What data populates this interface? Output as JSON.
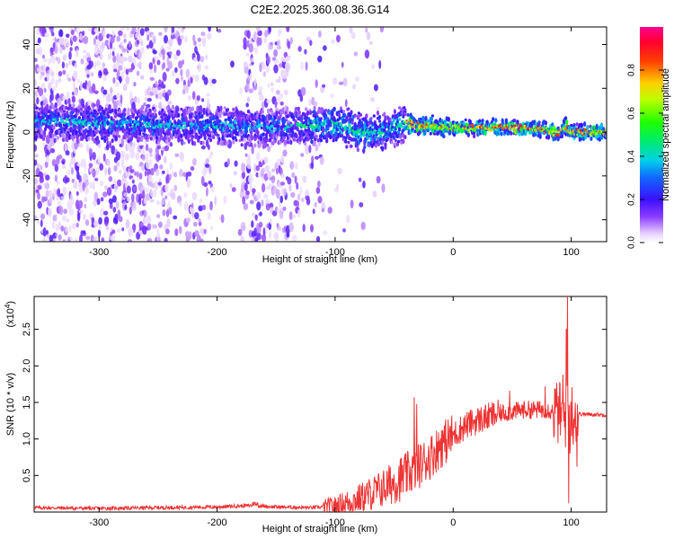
{
  "title": "C2E2.2025.360.08.36.G14",
  "chart_data": [
    {
      "type": "heatmap",
      "xlabel": "Height of straight line (km)",
      "ylabel": "Frequency (Hz)",
      "xlim": [
        -355,
        130
      ],
      "ylim": [
        -50,
        48
      ],
      "xticks": [
        -300,
        -200,
        -100,
        0,
        100
      ],
      "yticks": [
        -40,
        -20,
        0,
        20,
        40
      ],
      "colorbar": {
        "label": "Normalized spectral amplitude",
        "range": [
          0.0,
          1.0
        ],
        "ticks": [
          "0.0",
          "0.2",
          "0.4",
          "0.6",
          "0.8"
        ],
        "colormap": "rainbow"
      },
      "ridge": {
        "x": [
          -355,
          -300,
          -250,
          -200,
          -150,
          -120,
          -100,
          -80,
          -60,
          -50,
          -40,
          -30,
          0,
          50,
          80,
          90,
          95,
          100,
          130
        ],
        "y": [
          5,
          4,
          3,
          3,
          2,
          3,
          4,
          0,
          0,
          2,
          4,
          3,
          2,
          2,
          1,
          -1,
          3,
          0,
          0
        ]
      }
    },
    {
      "type": "line",
      "xlabel": "Height of straight line (km)",
      "ylabel": "SNR (10 * v/v)",
      "yscale_label": "(x10",
      "yscale_exp": "4",
      "xlim": [
        -355,
        130
      ],
      "ylim": [
        0,
        2.95
      ],
      "xticks": [
        -300,
        -200,
        -100,
        0,
        100
      ],
      "yticks": [
        "0.5",
        "1.0",
        "1.5",
        "2.0",
        "2.5"
      ],
      "ytick_values": [
        0.5,
        1.0,
        1.5,
        2.0,
        2.5
      ],
      "color": "#ee3333",
      "trend": {
        "x": [
          -355,
          -300,
          -250,
          -200,
          -170,
          -150,
          -120,
          -100,
          -80,
          -60,
          -40,
          -30,
          -20,
          -10,
          0,
          10,
          20,
          40,
          60,
          80,
          90,
          95,
          100,
          110,
          130
        ],
        "y": [
          0.06,
          0.05,
          0.06,
          0.07,
          0.09,
          0.07,
          0.06,
          0.08,
          0.18,
          0.32,
          0.5,
          0.62,
          0.75,
          0.92,
          1.05,
          1.18,
          1.25,
          1.35,
          1.4,
          1.4,
          1.35,
          1.3,
          1.35,
          1.34,
          1.33
        ]
      },
      "spikes": [
        {
          "x": -33,
          "y": 1.57
        },
        {
          "x": -31,
          "y": 1.48
        },
        {
          "x": -10,
          "y": 1.12
        },
        {
          "x": 48,
          "y": 1.66
        },
        {
          "x": 78,
          "y": 1.72
        },
        {
          "x": 93,
          "y": 1.88
        },
        {
          "x": 96,
          "y": 2.5
        },
        {
          "x": 97,
          "y": 2.95
        },
        {
          "x": 98,
          "y": 0.12
        },
        {
          "x": 99,
          "y": 0.8
        },
        {
          "x": 105,
          "y": 0.62
        }
      ]
    }
  ]
}
